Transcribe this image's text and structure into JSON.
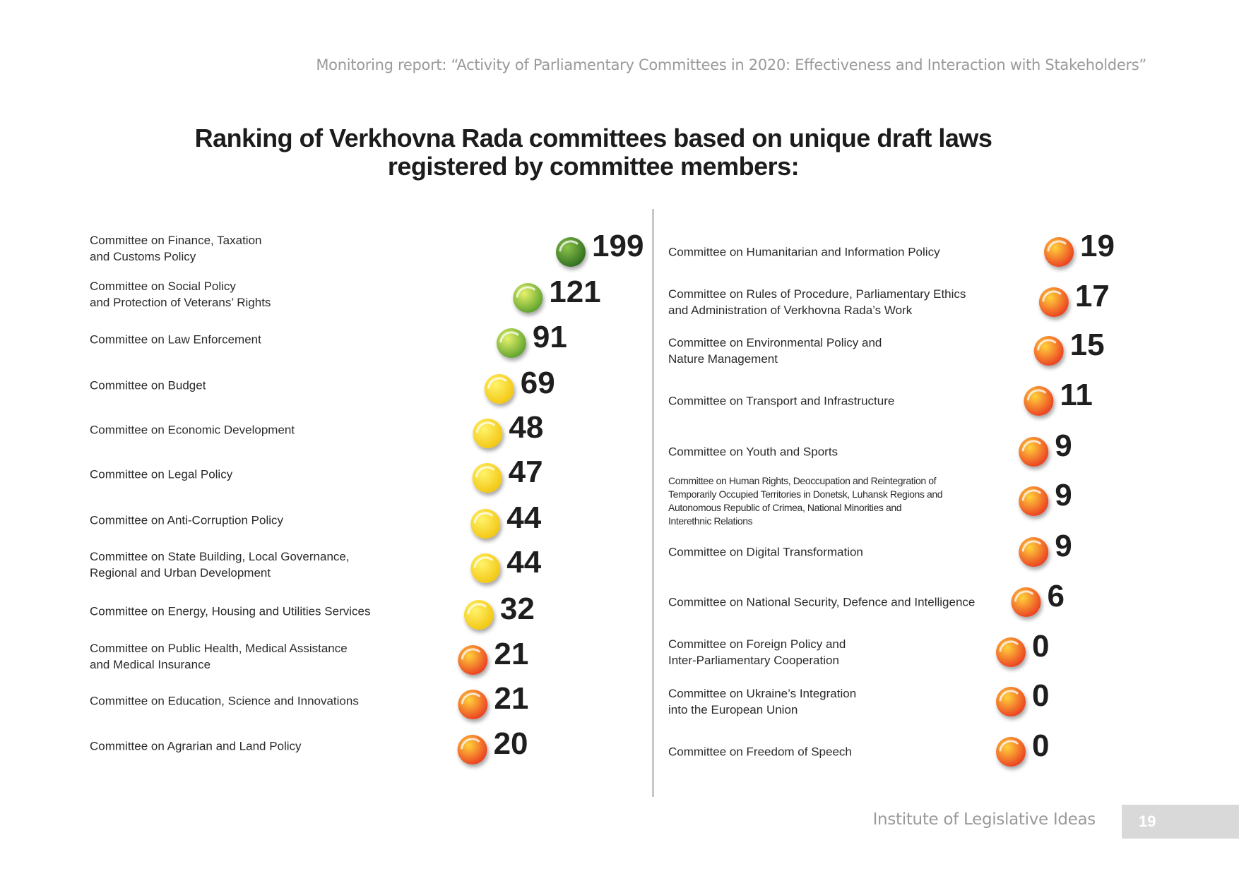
{
  "header": {
    "report_title": "Monitoring report: “Activity of Parliamentary Committees in 2020: Effectiveness and Interaction with Stakeholders”"
  },
  "title": {
    "line1": "Ranking of Verkhovna Rada committees based on unique draft laws",
    "line2": "registered by committee members:"
  },
  "footer": {
    "organization": "Institute of Legislative Ideas",
    "page_number": "19"
  },
  "colors": {
    "dark_green": "#3d7a2c",
    "green": "#4caf3a",
    "yellow": "#f5d21c",
    "orange": "#f0822a",
    "red_orange": "#e8472a"
  },
  "chart_data": {
    "type": "bar",
    "orientation": "horizontal",
    "xlim": [
      0,
      199
    ],
    "left_column": [
      {
        "label": "Committee on Finance, Taxation\nand Customs Policy",
        "value": 199,
        "value_label": "199",
        "color_group": "dark-green"
      },
      {
        "label": "Committee on Social Policy\nand Protection of Veterans’ Rights",
        "value": 121,
        "value_label": "121",
        "color_group": "green"
      },
      {
        "label": "Committee on Law Enforcement",
        "value": 91,
        "value_label": "91",
        "color_group": "green"
      },
      {
        "label": "Committee on Budget",
        "value": 69,
        "value_label": "69",
        "color_group": "yellow"
      },
      {
        "label": "Committee on Economic Development",
        "value": 48,
        "value_label": "48",
        "color_group": "yellow"
      },
      {
        "label": "Committee on Legal Policy",
        "value": 47,
        "value_label": "47",
        "color_group": "yellow"
      },
      {
        "label": "Committee on Anti-Corruption Policy",
        "value": 44,
        "value_label": "44",
        "color_group": "yellow"
      },
      {
        "label": "Committee on State Building, Local Governance,\nRegional and Urban Development",
        "value": 44,
        "value_label": "44",
        "color_group": "yellow"
      },
      {
        "label": "Committee on Energy, Housing and Utilities Services",
        "value": 32,
        "value_label": "32",
        "color_group": "yellow"
      },
      {
        "label": "Committee on Public Health, Medical Assistance\nand Medical Insurance",
        "value": 21,
        "value_label": "21",
        "color_group": "orange"
      },
      {
        "label": "Committee on Education, Science and Innovations",
        "value": 21,
        "value_label": "21",
        "color_group": "orange"
      },
      {
        "label": "Committee on Agrarian and Land Policy",
        "value": 20,
        "value_label": "20",
        "color_group": "orange"
      }
    ],
    "right_column": [
      {
        "label": "Committee on Humanitarian and Information Policy",
        "value": 19,
        "value_label": "19",
        "color_group": "orange"
      },
      {
        "label": "Committee on Rules of Procedure, Parliamentary Ethics\nand Administration of Verkhovna Rada’s Work",
        "value": 17,
        "value_label": "17",
        "color_group": "orange"
      },
      {
        "label": "Committee on Environmental Policy and\nNature Management",
        "value": 15,
        "value_label": "15",
        "color_group": "orange"
      },
      {
        "label": "Committee on Transport and Infrastructure",
        "value": 11,
        "value_label": "11",
        "color_group": "orange"
      },
      {
        "label": "Committee on Youth and Sports",
        "value": 9,
        "value_label": "9",
        "color_group": "orange"
      },
      {
        "label": "Committee on Human Rights, Deoccupation and Reintegration of\nTemporarily Occupied Territories in Donetsk, Luhansk Regions and\nAutonomous Republic of Crimea, National Minorities and\nInterethnic Relations",
        "value": 9,
        "value_label": "9",
        "color_group": "orange",
        "small_text": true
      },
      {
        "label": "Committee on Digital Transformation",
        "value": 9,
        "value_label": "9",
        "color_group": "orange"
      },
      {
        "label": "Committee on National Security, Defence and Intelligence",
        "value": 6,
        "value_label": "6",
        "color_group": "orange"
      },
      {
        "label": "Committee on Foreign Policy and\nInter-Parliamentary Cooperation",
        "value": 0,
        "value_label": "0",
        "color_group": "orange"
      },
      {
        "label": "Committee on Ukraine’s Integration\ninto the European Union",
        "value": 0,
        "value_label": "0",
        "color_group": "orange"
      },
      {
        "label": "Committee on Freedom of Speech",
        "value": 0,
        "value_label": "0",
        "color_group": "orange"
      }
    ]
  }
}
